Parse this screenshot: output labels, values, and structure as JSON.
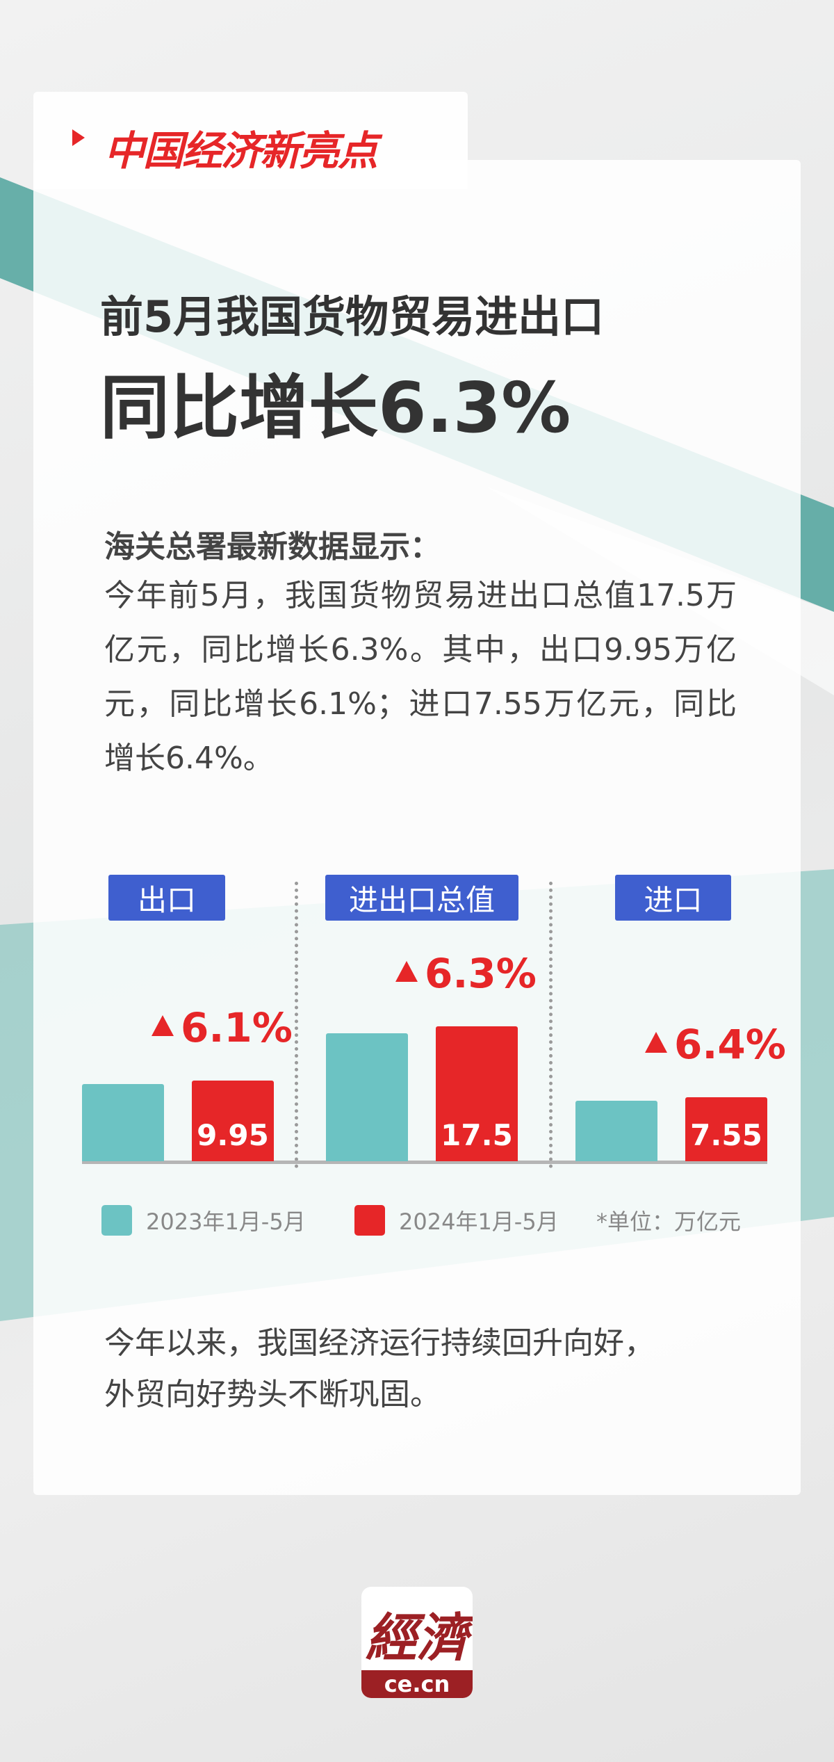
{
  "header": {
    "brand": "中国经济新亮点"
  },
  "title": {
    "line1": "前5月我国货物贸易进出口",
    "line2": "同比增长6.3%"
  },
  "body": {
    "heading": "海关总署最新数据显示：",
    "paragraph": "今年前5月，我国货物贸易进出口总值17.5万亿元，同比增长6.3%。其中，出口9.95万亿元，同比增长6.1%；进口7.55万亿元，同比增长6.4%。"
  },
  "colors": {
    "accent": "#e62628",
    "label_bg": "#3f5fcf",
    "series_2023": "#6cc3c3",
    "series_2024": "#e62628"
  },
  "chart_data": {
    "type": "bar",
    "categories": [
      "出口",
      "进出口总值",
      "进口"
    ],
    "series": [
      {
        "name": "2023年1月-5月",
        "values": [
          9.38,
          16.46,
          7.1
        ]
      },
      {
        "name": "2024年1月-5月",
        "values": [
          9.95,
          17.5,
          7.55
        ]
      }
    ],
    "data_labels": [
      "9.95",
      "17.5",
      "7.55"
    ],
    "growth_labels": [
      "6.1%",
      "6.3%",
      "6.4%"
    ],
    "unit_note": "*单位：万亿元",
    "legend_position": "bottom",
    "grid": false
  },
  "closing": {
    "line1": "今年以来，我国经济运行持续回升向好，",
    "line2": "外贸向好势头不断巩固。"
  },
  "logo": {
    "text": "经济",
    "domain": "ce.cn"
  }
}
